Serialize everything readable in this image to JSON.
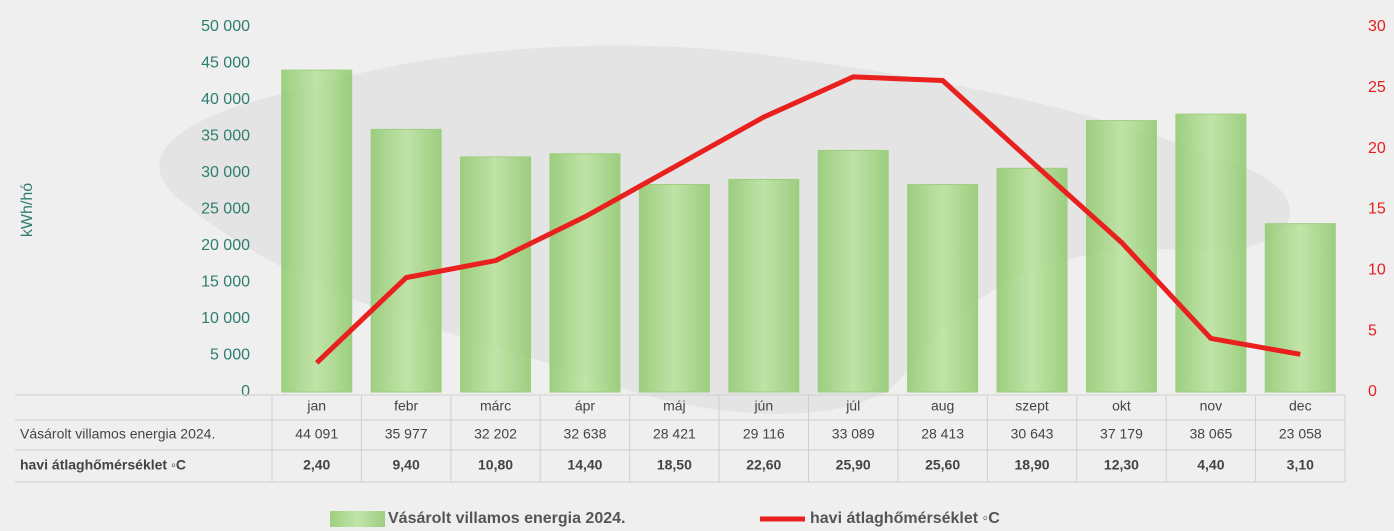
{
  "chart_data": {
    "type": "bar",
    "categories": [
      "jan",
      "febr",
      "márc",
      "ápr",
      "máj",
      "jún",
      "júl",
      "aug",
      "szept",
      "okt",
      "nov",
      "dec"
    ],
    "series": [
      {
        "name": "Vásárolt villamos energia 2024.",
        "color": "#a9d88c",
        "type": "bar",
        "values": [
          44091,
          35977,
          32202,
          32638,
          28421,
          29116,
          33089,
          28413,
          30643,
          37179,
          38065,
          23058
        ],
        "value_labels": [
          "44 091",
          "35 977",
          "32 202",
          "32 638",
          "28 421",
          "29 116",
          "33 089",
          "28 413",
          "30 643",
          "37 179",
          "38 065",
          "23 058"
        ]
      },
      {
        "name": "havi átlaghőmérséklet ◦C",
        "color": "#e8201e",
        "type": "line",
        "axis": "y2",
        "values": [
          2.4,
          9.4,
          10.8,
          14.4,
          18.5,
          22.6,
          25.9,
          25.6,
          18.9,
          12.3,
          4.4,
          3.1
        ],
        "value_labels": [
          "2,40",
          "9,40",
          "10,80",
          "14,40",
          "18,50",
          "22,60",
          "25,90",
          "25,60",
          "18,90",
          "12,30",
          "4,40",
          "3,10"
        ]
      }
    ],
    "ylabel": "kWh/hó",
    "ylim": [
      0,
      50000
    ],
    "yticks": [
      0,
      {
        "value": 5000,
        "label": "5 000"
      },
      {
        "value": 10000,
        "label": "10 000"
      },
      {
        "value": 15000,
        "label": "15 000"
      },
      {
        "value": 20000,
        "label": "20 000"
      },
      {
        "value": 25000,
        "label": "25 000"
      },
      {
        "value": 30000,
        "label": "30 000"
      },
      {
        "value": 35000,
        "label": "35 000"
      },
      {
        "value": 40000,
        "label": "40 000"
      },
      {
        "value": 45000,
        "label": "45 000"
      },
      {
        "value": 50000,
        "label": "50 000"
      }
    ],
    "y2lim": [
      0,
      30
    ],
    "y2ticks": [
      0,
      5,
      10,
      15,
      20,
      25,
      30
    ],
    "legend": "bottom"
  }
}
